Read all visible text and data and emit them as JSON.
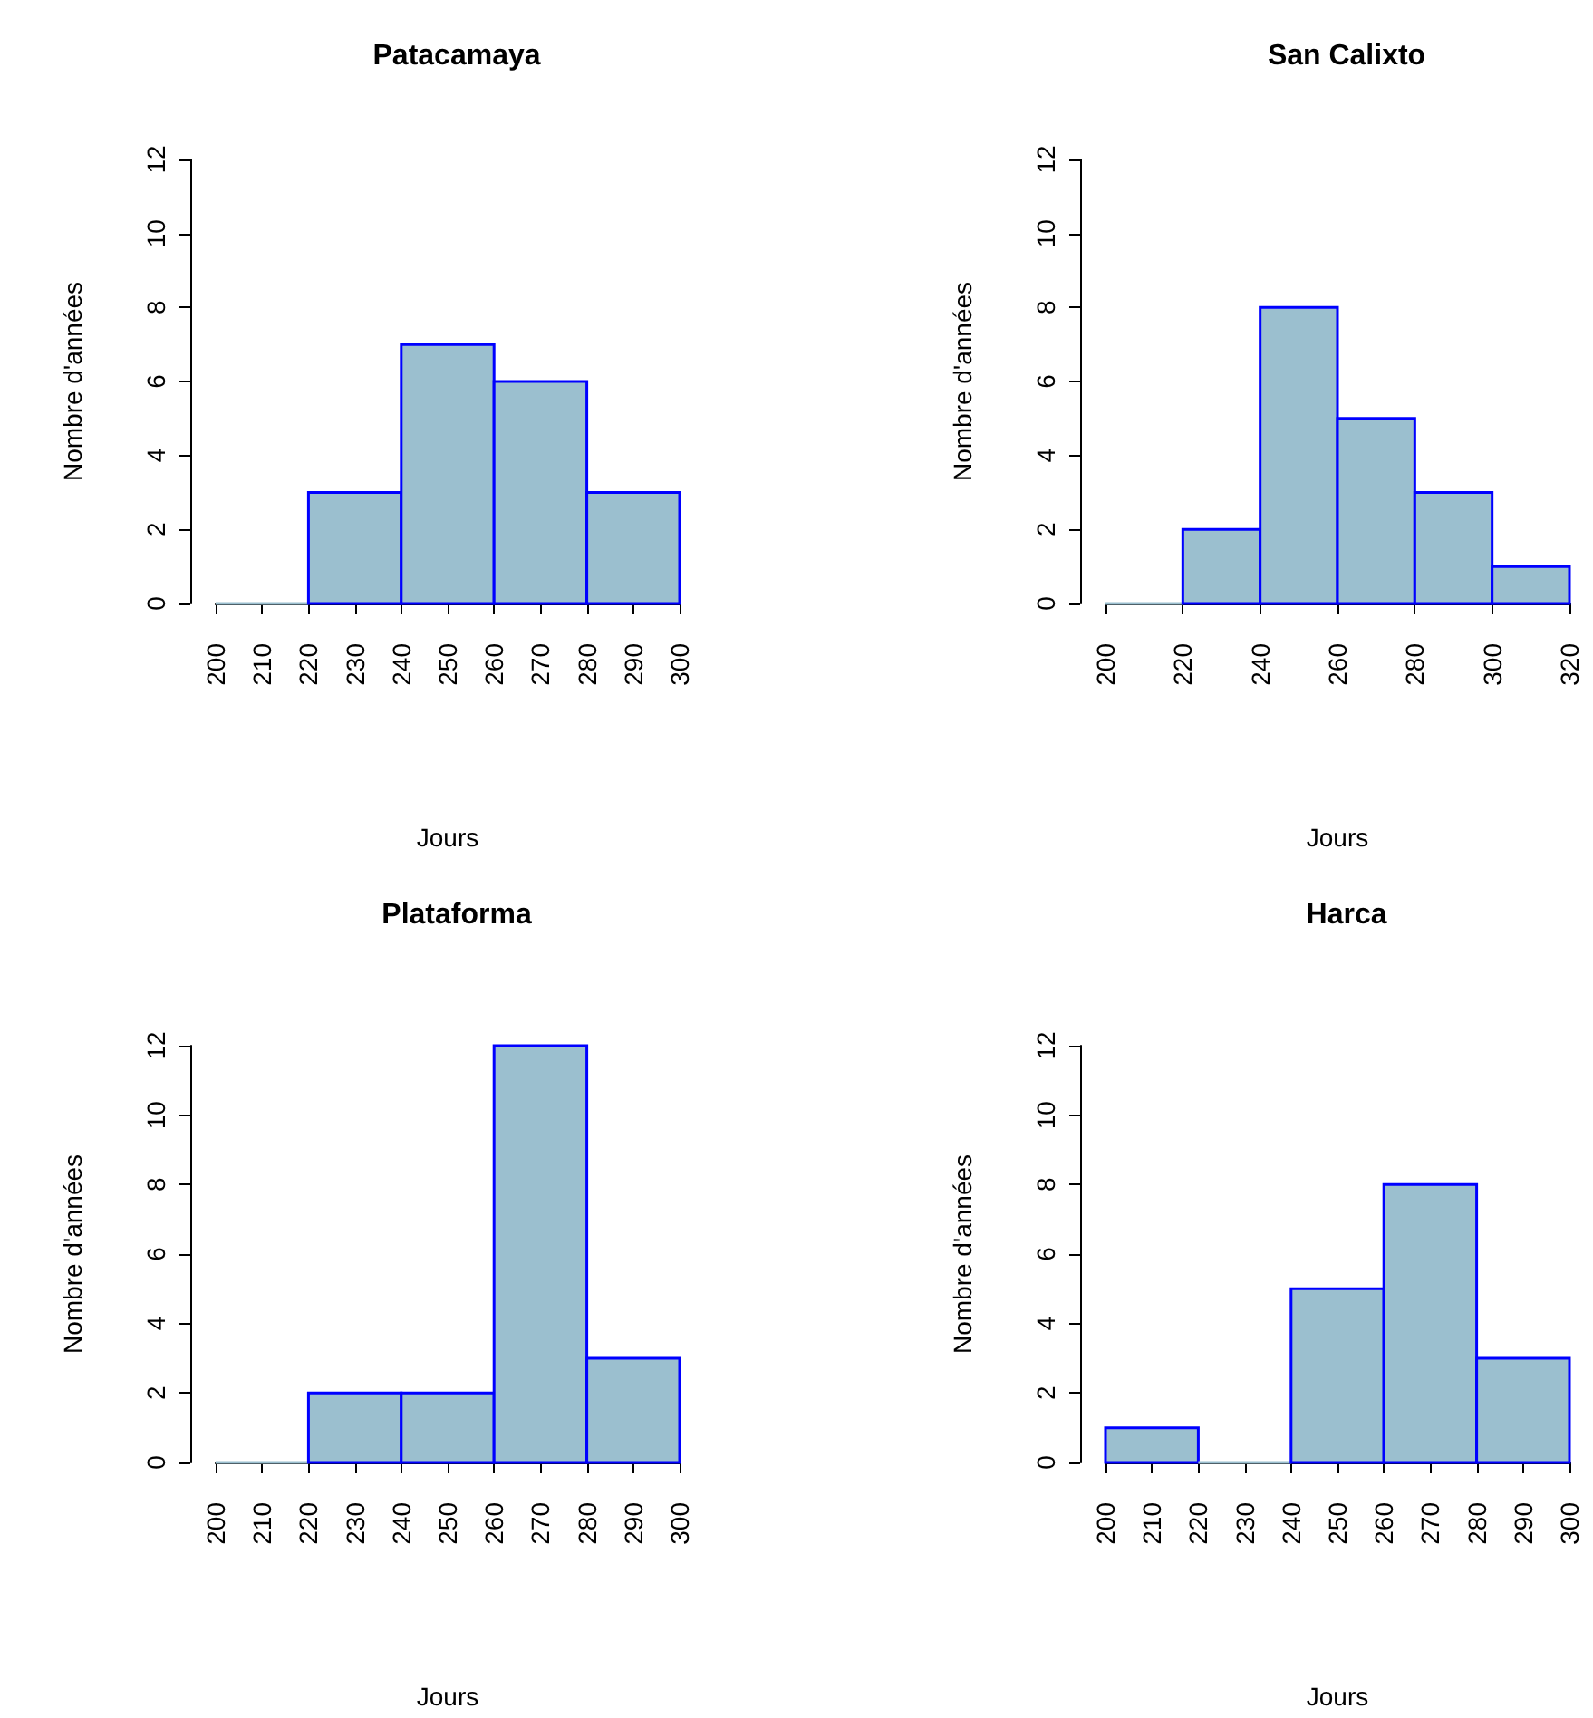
{
  "chart_data": [
    {
      "type": "histogram",
      "title": "Patacamaya",
      "xlabel": "Jours",
      "ylabel": "Nombre d'années",
      "bins": [
        200,
        220,
        240,
        260,
        280,
        300
      ],
      "values": [
        0,
        3,
        7,
        6,
        3
      ],
      "color": "#9bbfcf",
      "xlim": [
        200,
        300
      ],
      "xticks": [
        200,
        210,
        220,
        230,
        240,
        250,
        260,
        270,
        280,
        290,
        300
      ],
      "ylim": [
        0,
        12
      ],
      "yticks": [
        0,
        2,
        4,
        6,
        8,
        10,
        12
      ]
    },
    {
      "type": "histogram",
      "title": "San Calixto",
      "xlabel": "Jours",
      "ylabel": "Nombre d'années",
      "bins": [
        200,
        220,
        240,
        260,
        280,
        300,
        320
      ],
      "values": [
        0,
        2,
        8,
        5,
        3,
        1
      ],
      "color": "#9bbfcf",
      "xlim": [
        200,
        320
      ],
      "xticks": [
        200,
        220,
        240,
        260,
        280,
        300,
        320
      ],
      "ylim": [
        0,
        12
      ],
      "yticks": [
        0,
        2,
        4,
        6,
        8,
        10,
        12
      ]
    },
    {
      "type": "histogram",
      "title": "Plataforma",
      "xlabel": "Jours",
      "ylabel": "Nombre d'années",
      "bins": [
        200,
        220,
        240,
        260,
        280,
        300
      ],
      "values": [
        0,
        2,
        2,
        12,
        3
      ],
      "color": "#9bbfcf",
      "xlim": [
        200,
        300
      ],
      "xticks": [
        200,
        210,
        220,
        230,
        240,
        250,
        260,
        270,
        280,
        290,
        300
      ],
      "ylim": [
        0,
        12
      ],
      "yticks": [
        0,
        2,
        4,
        6,
        8,
        10,
        12
      ]
    },
    {
      "type": "histogram",
      "title": "Harca",
      "xlabel": "Jours",
      "ylabel": "Nombre d'années",
      "bins": [
        200,
        220,
        240,
        260,
        280,
        300
      ],
      "values": [
        1,
        0,
        5,
        8,
        3
      ],
      "color": "#9bbfcf",
      "xlim": [
        200,
        300
      ],
      "xticks": [
        200,
        210,
        220,
        230,
        240,
        250,
        260,
        270,
        280,
        290,
        300
      ],
      "ylim": [
        0,
        12
      ],
      "yticks": [
        0,
        2,
        4,
        6,
        8,
        10,
        12
      ]
    }
  ]
}
